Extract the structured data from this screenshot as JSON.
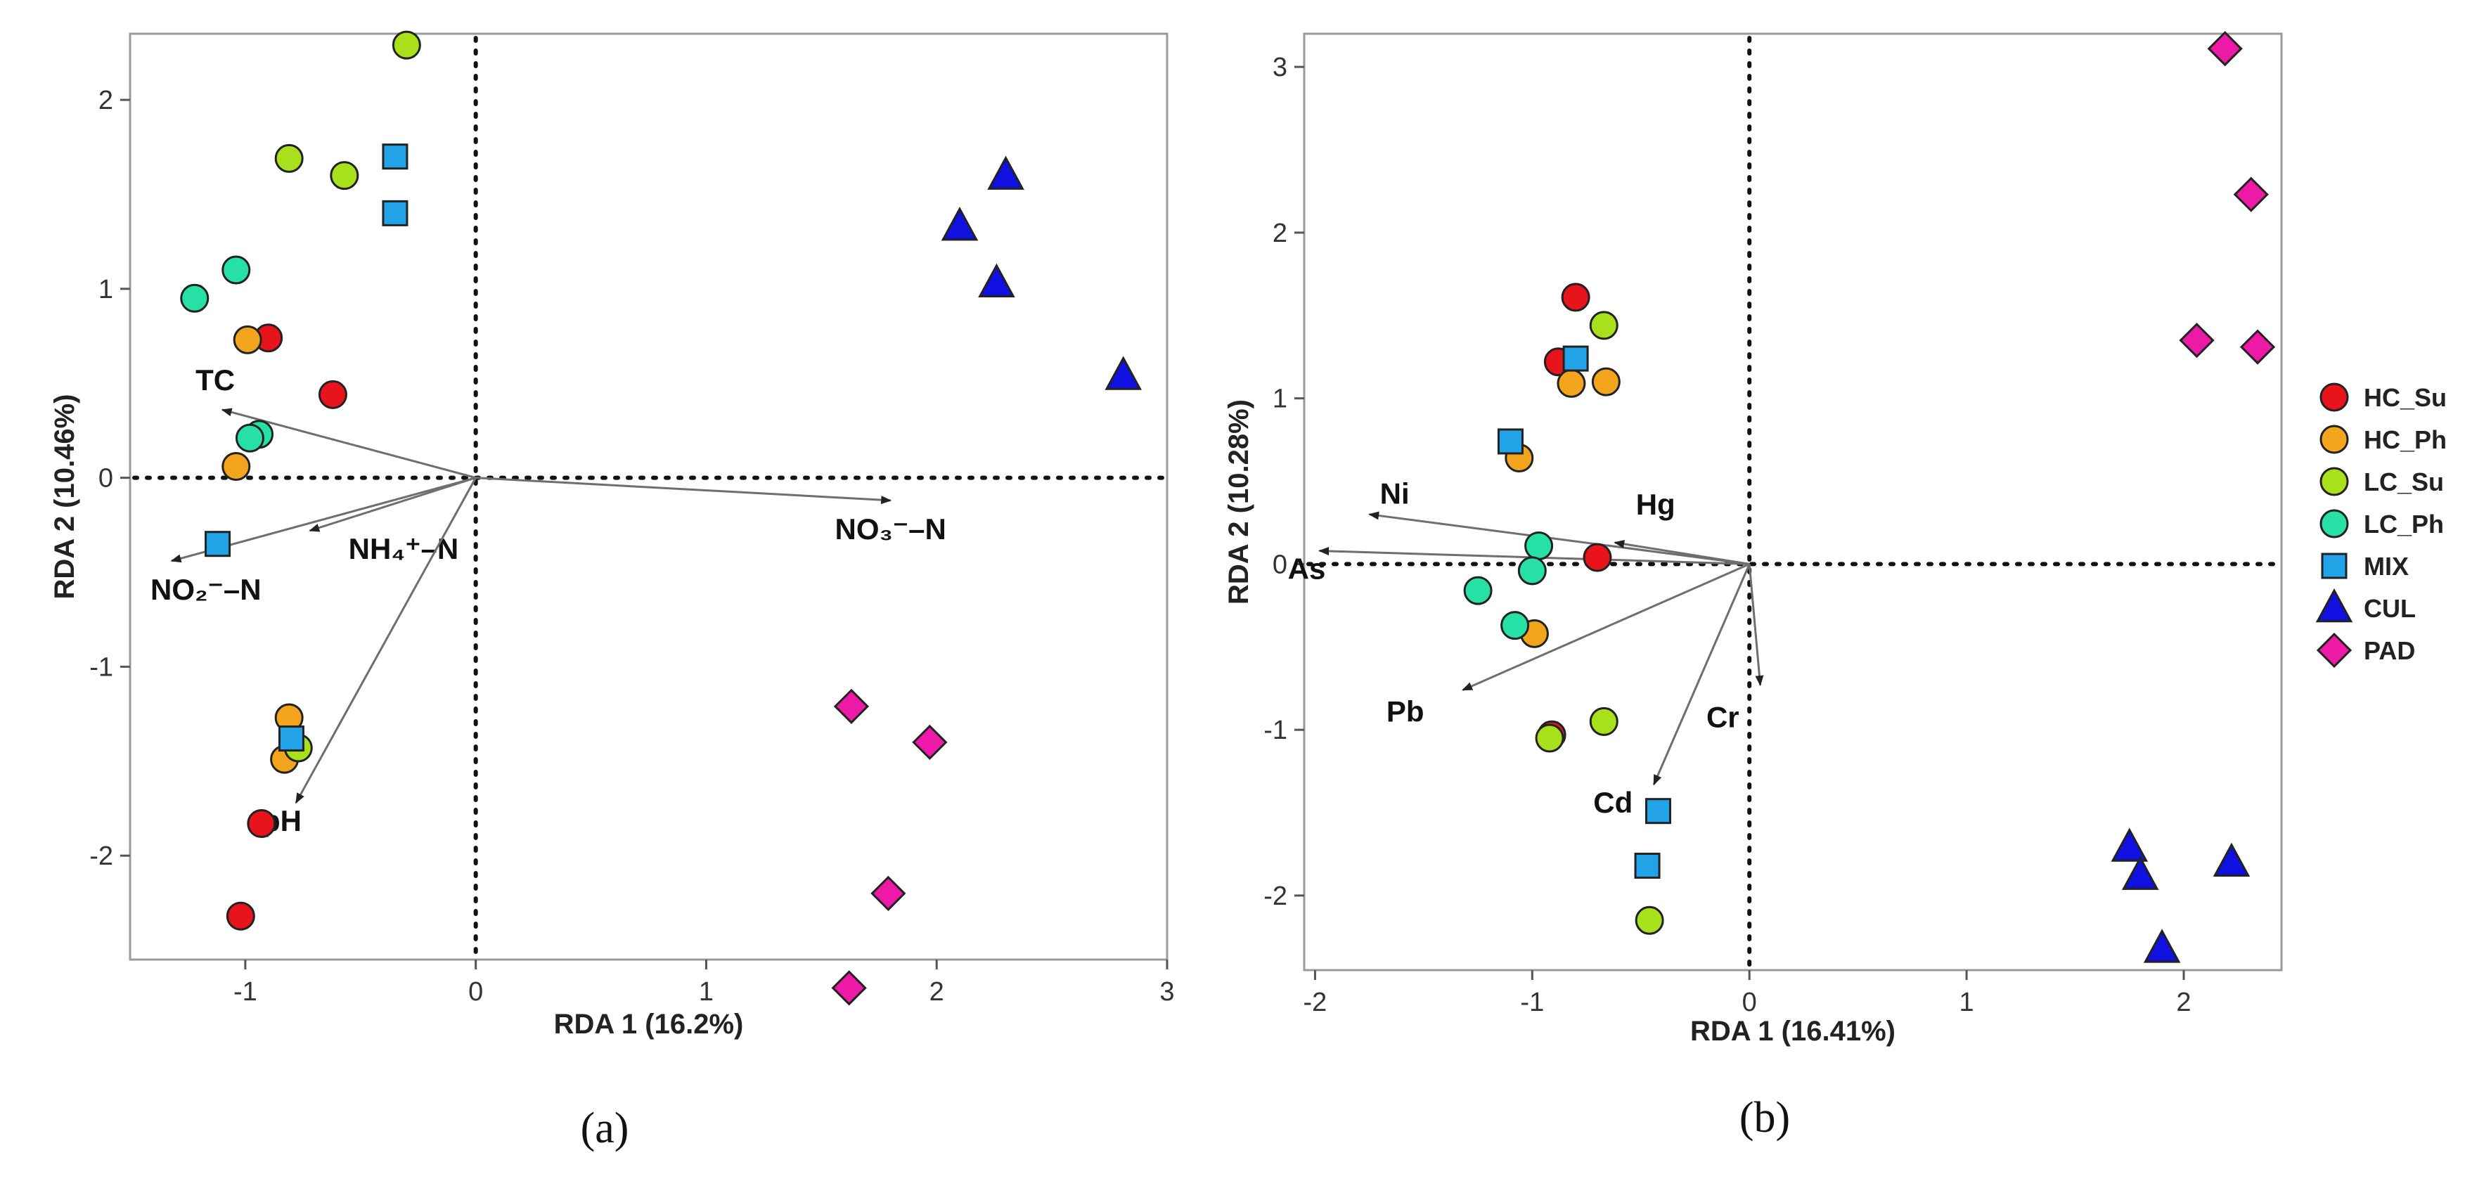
{
  "groups": [
    {
      "key": "HC_Su",
      "label": "HC_Su",
      "color": "#e8141b",
      "shape": "circle"
    },
    {
      "key": "HC_Ph",
      "label": "HC_Ph",
      "color": "#f2a51c",
      "shape": "circle"
    },
    {
      "key": "LC_Su",
      "label": "LC_Su",
      "color": "#a8e01c",
      "shape": "circle"
    },
    {
      "key": "LC_Ph",
      "label": "LC_Ph",
      "color": "#27e0a6",
      "shape": "circle"
    },
    {
      "key": "MIX",
      "label": "MIX",
      "color": "#22a3e8",
      "shape": "square"
    },
    {
      "key": "CUL",
      "label": "CUL",
      "color": "#1010e0",
      "shape": "triangle"
    },
    {
      "key": "PAD",
      "label": "PAD",
      "color": "#ec1aa6",
      "shape": "diamond"
    }
  ],
  "chart_data": [
    {
      "type": "scatter",
      "subtype": "rda-biplot",
      "caption": "(a)",
      "xlabel": "RDA 1 (16.2%)",
      "ylabel": "RDA 2 (10.46%)",
      "xlim": [
        -1.5,
        3.0
      ],
      "ylim": [
        -2.55,
        2.35
      ],
      "xticks": [
        -1,
        0,
        1,
        2,
        3
      ],
      "yticks": [
        -2,
        -1,
        0,
        1,
        2
      ],
      "reference_lines": {
        "x": 0,
        "y": 0
      },
      "arrows": [
        {
          "label": "TC",
          "x": -1.1,
          "y": 0.36
        },
        {
          "label": "NO₂⁻–N",
          "x": -1.32,
          "y": -0.44
        },
        {
          "label": "NH₄⁺–N",
          "x": -0.72,
          "y": -0.28
        },
        {
          "label": "pH",
          "x": -0.78,
          "y": -1.72
        },
        {
          "label": "NO₃⁻–N",
          "x": 1.8,
          "y": -0.12
        }
      ],
      "points": [
        {
          "group": "HC_Su",
          "x": -0.9,
          "y": 0.74
        },
        {
          "group": "HC_Su",
          "x": -0.62,
          "y": 0.44
        },
        {
          "group": "HC_Su",
          "x": -0.93,
          "y": -1.83
        },
        {
          "group": "HC_Su",
          "x": -1.02,
          "y": -2.32
        },
        {
          "group": "HC_Ph",
          "x": -0.99,
          "y": 0.73
        },
        {
          "group": "HC_Ph",
          "x": -1.04,
          "y": 0.06
        },
        {
          "group": "HC_Ph",
          "x": -0.81,
          "y": -1.27
        },
        {
          "group": "HC_Ph",
          "x": -0.83,
          "y": -1.49
        },
        {
          "group": "LC_Su",
          "x": -0.3,
          "y": 2.29
        },
        {
          "group": "LC_Su",
          "x": -0.81,
          "y": 1.69
        },
        {
          "group": "LC_Su",
          "x": -0.57,
          "y": 1.6
        },
        {
          "group": "LC_Su",
          "x": -0.77,
          "y": -1.43
        },
        {
          "group": "LC_Ph",
          "x": -1.22,
          "y": 0.95
        },
        {
          "group": "LC_Ph",
          "x": -1.04,
          "y": 1.1
        },
        {
          "group": "LC_Ph",
          "x": -0.94,
          "y": 0.23
        },
        {
          "group": "LC_Ph",
          "x": -0.98,
          "y": 0.21
        },
        {
          "group": "MIX",
          "x": -0.35,
          "y": 1.7
        },
        {
          "group": "MIX",
          "x": -0.35,
          "y": 1.4
        },
        {
          "group": "MIX",
          "x": -1.12,
          "y": -0.35
        },
        {
          "group": "MIX",
          "x": -0.8,
          "y": -1.38
        },
        {
          "group": "CUL",
          "x": 2.3,
          "y": 1.6
        },
        {
          "group": "CUL",
          "x": 2.1,
          "y": 1.33
        },
        {
          "group": "CUL",
          "x": 2.26,
          "y": 1.03
        },
        {
          "group": "CUL",
          "x": 2.81,
          "y": 0.54
        },
        {
          "group": "PAD",
          "x": 1.63,
          "y": -1.21
        },
        {
          "group": "PAD",
          "x": 1.97,
          "y": -1.4
        },
        {
          "group": "PAD",
          "x": 1.79,
          "y": -2.2
        },
        {
          "group": "PAD",
          "x": 1.62,
          "y": -2.7
        }
      ]
    },
    {
      "type": "scatter",
      "subtype": "rda-biplot",
      "caption": "(b)",
      "xlabel": "RDA 1 (16.41%)",
      "ylabel": "RDA 2 (10.28%)",
      "xlim": [
        -2.05,
        2.45
      ],
      "ylim": [
        -2.45,
        3.2
      ],
      "xticks": [
        -2,
        -1,
        0,
        1,
        2
      ],
      "yticks": [
        -2,
        -1,
        0,
        1,
        2,
        3
      ],
      "reference_lines": {
        "x": 0,
        "y": 0
      },
      "legend_position": "right",
      "arrows": [
        {
          "label": "Ni",
          "x": -1.75,
          "y": 0.3
        },
        {
          "label": "Hg",
          "x": -0.62,
          "y": 0.13
        },
        {
          "label": "As",
          "x": -1.98,
          "y": 0.08
        },
        {
          "label": "Pb",
          "x": -1.32,
          "y": -0.76
        },
        {
          "label": "Cr",
          "x": 0.05,
          "y": -0.73
        },
        {
          "label": "Cd",
          "x": -0.44,
          "y": -1.33
        }
      ],
      "points": [
        {
          "group": "HC_Su",
          "x": -0.8,
          "y": 1.61
        },
        {
          "group": "HC_Su",
          "x": -0.88,
          "y": 1.22
        },
        {
          "group": "HC_Su",
          "x": -0.7,
          "y": 0.04
        },
        {
          "group": "HC_Su",
          "x": -0.91,
          "y": -1.03
        },
        {
          "group": "HC_Ph",
          "x": -0.82,
          "y": 1.09
        },
        {
          "group": "HC_Ph",
          "x": -0.66,
          "y": 1.1
        },
        {
          "group": "HC_Ph",
          "x": -1.06,
          "y": 0.64
        },
        {
          "group": "HC_Ph",
          "x": -0.99,
          "y": -0.42
        },
        {
          "group": "LC_Su",
          "x": -0.67,
          "y": 1.44
        },
        {
          "group": "LC_Su",
          "x": -0.92,
          "y": -1.05
        },
        {
          "group": "LC_Su",
          "x": -0.67,
          "y": -0.95
        },
        {
          "group": "LC_Su",
          "x": -0.46,
          "y": -2.15
        },
        {
          "group": "LC_Ph",
          "x": -0.97,
          "y": 0.11
        },
        {
          "group": "LC_Ph",
          "x": -1.0,
          "y": -0.04
        },
        {
          "group": "LC_Ph",
          "x": -1.25,
          "y": -0.16
        },
        {
          "group": "LC_Ph",
          "x": -1.08,
          "y": -0.37
        },
        {
          "group": "MIX",
          "x": -0.8,
          "y": 1.24
        },
        {
          "group": "MIX",
          "x": -1.1,
          "y": 0.74
        },
        {
          "group": "MIX",
          "x": -0.42,
          "y": -1.49
        },
        {
          "group": "MIX",
          "x": -0.47,
          "y": -1.82
        },
        {
          "group": "CUL",
          "x": 1.75,
          "y": -1.71
        },
        {
          "group": "CUL",
          "x": 1.8,
          "y": -1.88
        },
        {
          "group": "CUL",
          "x": 2.22,
          "y": -1.8
        },
        {
          "group": "CUL",
          "x": 1.9,
          "y": -2.32
        },
        {
          "group": "PAD",
          "x": 2.19,
          "y": 3.11
        },
        {
          "group": "PAD",
          "x": 2.31,
          "y": 2.23
        },
        {
          "group": "PAD",
          "x": 2.06,
          "y": 1.35
        },
        {
          "group": "PAD",
          "x": 2.34,
          "y": 1.31
        }
      ]
    }
  ]
}
